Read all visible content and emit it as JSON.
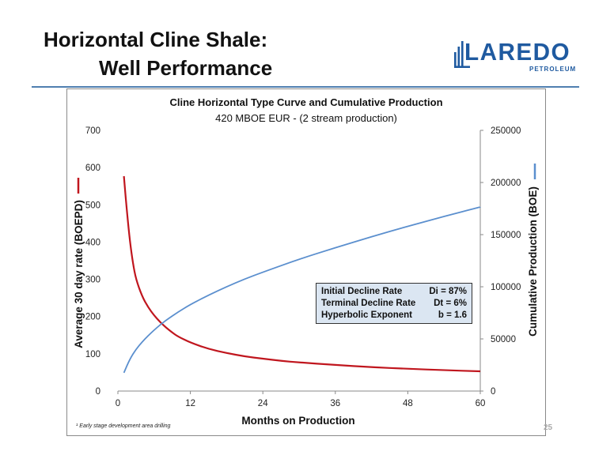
{
  "slide": {
    "title_line1": "Horizontal Cline Shale:",
    "title_line2": "Well Performance",
    "footnote": "¹ Early stage development area drilling",
    "page_number": "25"
  },
  "logo": {
    "name": "LAREDO",
    "subtitle": "PETROLEUM",
    "color": "#1f5aa0",
    "accent_color": "#1f5aa0",
    "icon": "building-bars-icon"
  },
  "colors": {
    "rate_series": "#c0161e",
    "cumulative_series": "#5b8fce",
    "divider": "#4f7fb0",
    "stats_box_fill": "#dbe6f2"
  },
  "stats_box": [
    {
      "label": "Initial Decline Rate",
      "value": "Di = 87%"
    },
    {
      "label": "Terminal Decline Rate",
      "value": "Dt = 6%"
    },
    {
      "label": "Hyperbolic Exponent",
      "value": "b = 1.6"
    }
  ],
  "chart_data": {
    "type": "line",
    "title": "Cline Horizontal Type Curve and Cumulative Production",
    "subtitle": "420 MBOE EUR - (2 stream production)",
    "xlabel": "Months on Production",
    "ylabel_left": "Average 30 day rate (BOEPD)",
    "ylabel_right": "Cumulative Production (BOE)",
    "xlim": [
      0,
      60
    ],
    "ylim_left": [
      0,
      700
    ],
    "ylim_right": [
      0,
      250000
    ],
    "x_ticks": [
      "0",
      "12",
      "24",
      "36",
      "48",
      "60"
    ],
    "y_left_ticks": [
      "0",
      "100",
      "200",
      "300",
      "400",
      "500",
      "600",
      "700"
    ],
    "y_right_ticks": [
      "0",
      "50000",
      "100000",
      "150000",
      "200000",
      "250000"
    ],
    "grid": false,
    "series": [
      {
        "axis": "left",
        "color": "#c0161e",
        "x": [
          1,
          1.5,
          2,
          2.5,
          3,
          4,
          5,
          6,
          7,
          8,
          9,
          10,
          12,
          15,
          18,
          21,
          24,
          27,
          30,
          36,
          42,
          48,
          54,
          60
        ],
        "values": [
          577,
          480,
          400,
          342,
          300,
          255,
          225,
          203,
          185,
          170,
          157,
          146,
          130,
          113,
          102,
          93,
          87,
          81,
          77,
          70,
          64,
          60,
          56,
          53
        ]
      },
      {
        "axis": "right",
        "color": "#5b8fce",
        "x": [
          1,
          2,
          3,
          4,
          5,
          6,
          7,
          8,
          10,
          12,
          15,
          18,
          21,
          24,
          30,
          36,
          42,
          48,
          54,
          60
        ],
        "values": [
          17500,
          31000,
          40000,
          47000,
          53000,
          58500,
          63500,
          68000,
          76000,
          83000,
          92000,
          100000,
          107500,
          114000,
          126500,
          137500,
          148000,
          158000,
          167500,
          176500
        ]
      }
    ]
  }
}
